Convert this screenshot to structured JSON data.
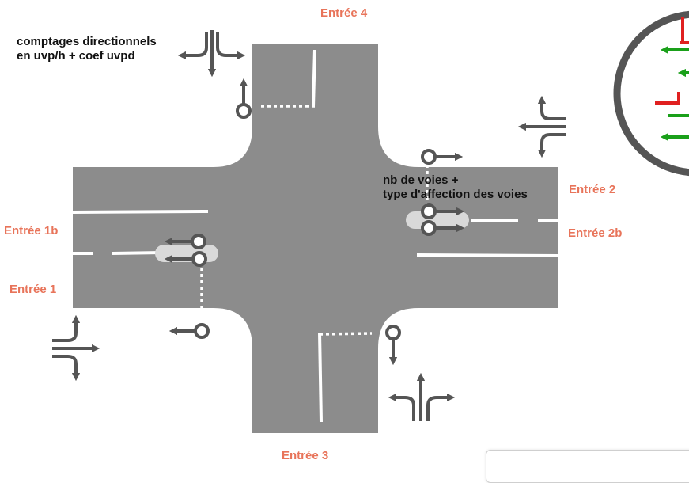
{
  "entries": {
    "e1": "Entrée 1",
    "e1b": "Entrée 1b",
    "e2": "Entrée 2",
    "e2b": "Entrée 2b",
    "e3": "Entrée 3",
    "e4": "Entrée 4"
  },
  "notes": {
    "counts_line1": "comptages directionnels",
    "counts_line2": "en uvp/h + coef uvpd",
    "lanes_line1": "nb de voies +",
    "lanes_line2": "type d'affection des voies"
  },
  "colors": {
    "road": "#8c8c8c",
    "arrow": "#555555",
    "entry_label": "#e8745a",
    "signal_red": "#e02020",
    "signal_green": "#1aa01a"
  },
  "icons": [
    "turning-movements-icon",
    "traffic-light-icon",
    "lane-arrow-icon"
  ]
}
